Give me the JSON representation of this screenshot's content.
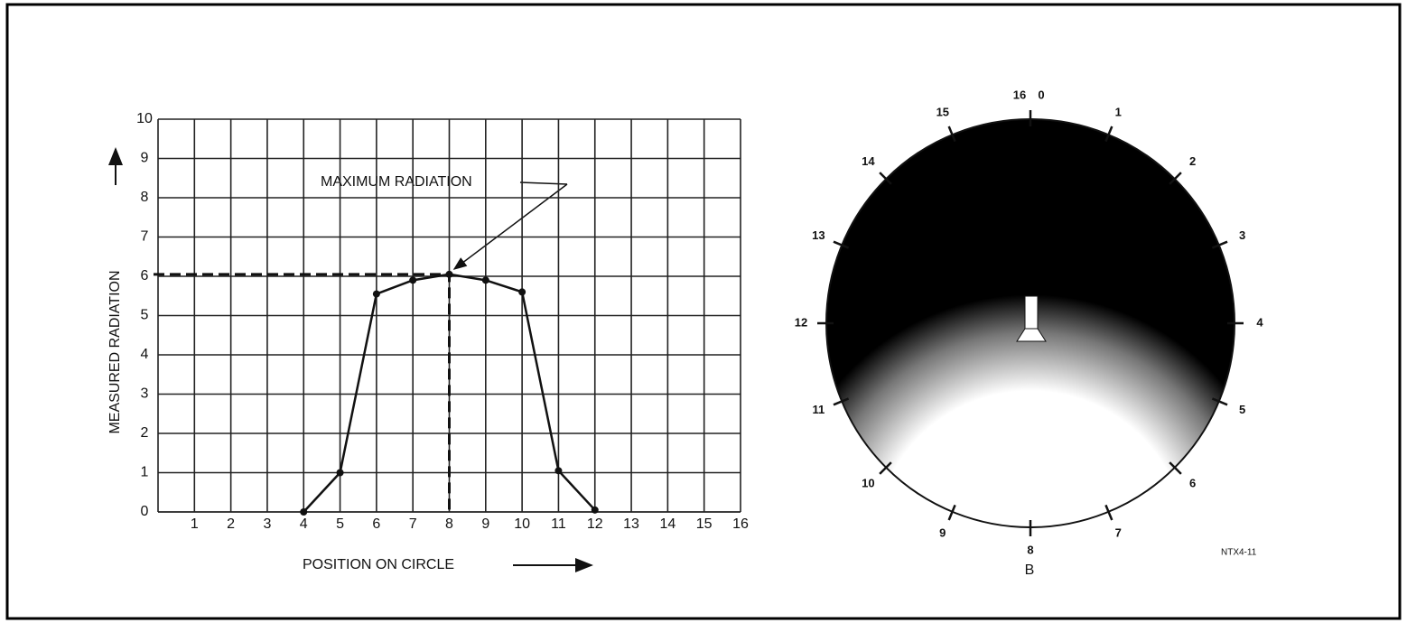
{
  "chart_data": {
    "type": "line",
    "x_label": "POSITION ON CIRCLE",
    "y_label": "MEASURED RADIATION",
    "annotation": "MAXIMUM RADIATION",
    "x": [
      4,
      5,
      6,
      7,
      8,
      9,
      10,
      11,
      12
    ],
    "values": [
      0,
      1,
      5.55,
      5.9,
      6.05,
      5.9,
      5.6,
      1.05,
      0.05
    ],
    "color": "#111111",
    "xlim": [
      0,
      16
    ],
    "xticks": [
      1,
      2,
      3,
      4,
      5,
      6,
      7,
      8,
      9,
      10,
      11,
      12,
      13,
      14,
      15,
      16
    ],
    "ylim": [
      0,
      10
    ],
    "yticks": [
      0,
      1,
      2,
      3,
      4,
      5,
      6,
      7,
      8,
      9,
      10
    ],
    "grid": true
  },
  "diagram": {
    "position_labels": [
      "0",
      "1",
      "2",
      "3",
      "4",
      "5",
      "6",
      "7",
      "8",
      "9",
      "10",
      "11",
      "12",
      "13",
      "14",
      "15"
    ],
    "wrap_label": "16",
    "caption": "B",
    "code": "NTX4-11"
  }
}
